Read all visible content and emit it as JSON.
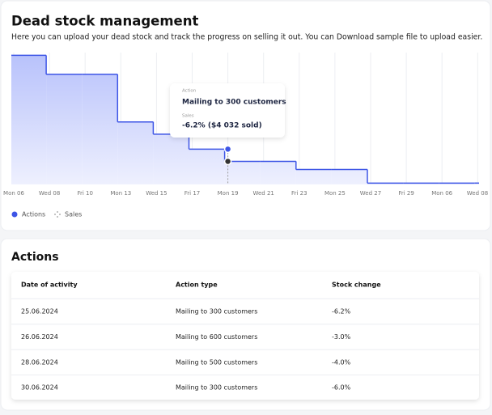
{
  "header": {
    "title": "Dead stock management",
    "subtitle": "Here you can upload your dead stock and track the progress on selling it out. You can Download sample file to upload easier."
  },
  "chart_data": {
    "type": "step-area",
    "categories": [
      "Mon 06",
      "Wed 08",
      "Fri 10",
      "Mon 13",
      "Wed 15",
      "Fri 17",
      "Mon 19",
      "Wed 21",
      "Fri 23",
      "Mon 25",
      "Wed 27",
      "Fri 29",
      "Mon 06",
      "Wed 08"
    ],
    "series": [
      {
        "name": "Actions",
        "color": "#3d55e6",
        "values": [
          95,
          81,
          81,
          46,
          37,
          26,
          17,
          17,
          11,
          11,
          1,
          1,
          1,
          1
        ]
      }
    ],
    "legend": [
      "Actions",
      "Sales"
    ],
    "ylim": [
      0,
      100
    ],
    "tooltip": {
      "action_label": "Action",
      "action": "Mailing to 300 customers",
      "sales_label": "Sales",
      "sales": "-6.2% ($4 032 sold)"
    }
  },
  "table": {
    "title": "Actions",
    "columns": [
      "Date of activity",
      "Action type",
      "Stock change"
    ],
    "rows": [
      [
        "25.06.2024",
        "Mailing to 300 customers",
        "-6.2%"
      ],
      [
        "26.06.2024",
        "Mailing to 600 customers",
        "-3.0%"
      ],
      [
        "28.06.2024",
        "Mailing to 500 customers",
        "-4.0%"
      ],
      [
        "30.06.2024",
        "Mailing to 300 customers",
        "-6.0%"
      ]
    ]
  }
}
